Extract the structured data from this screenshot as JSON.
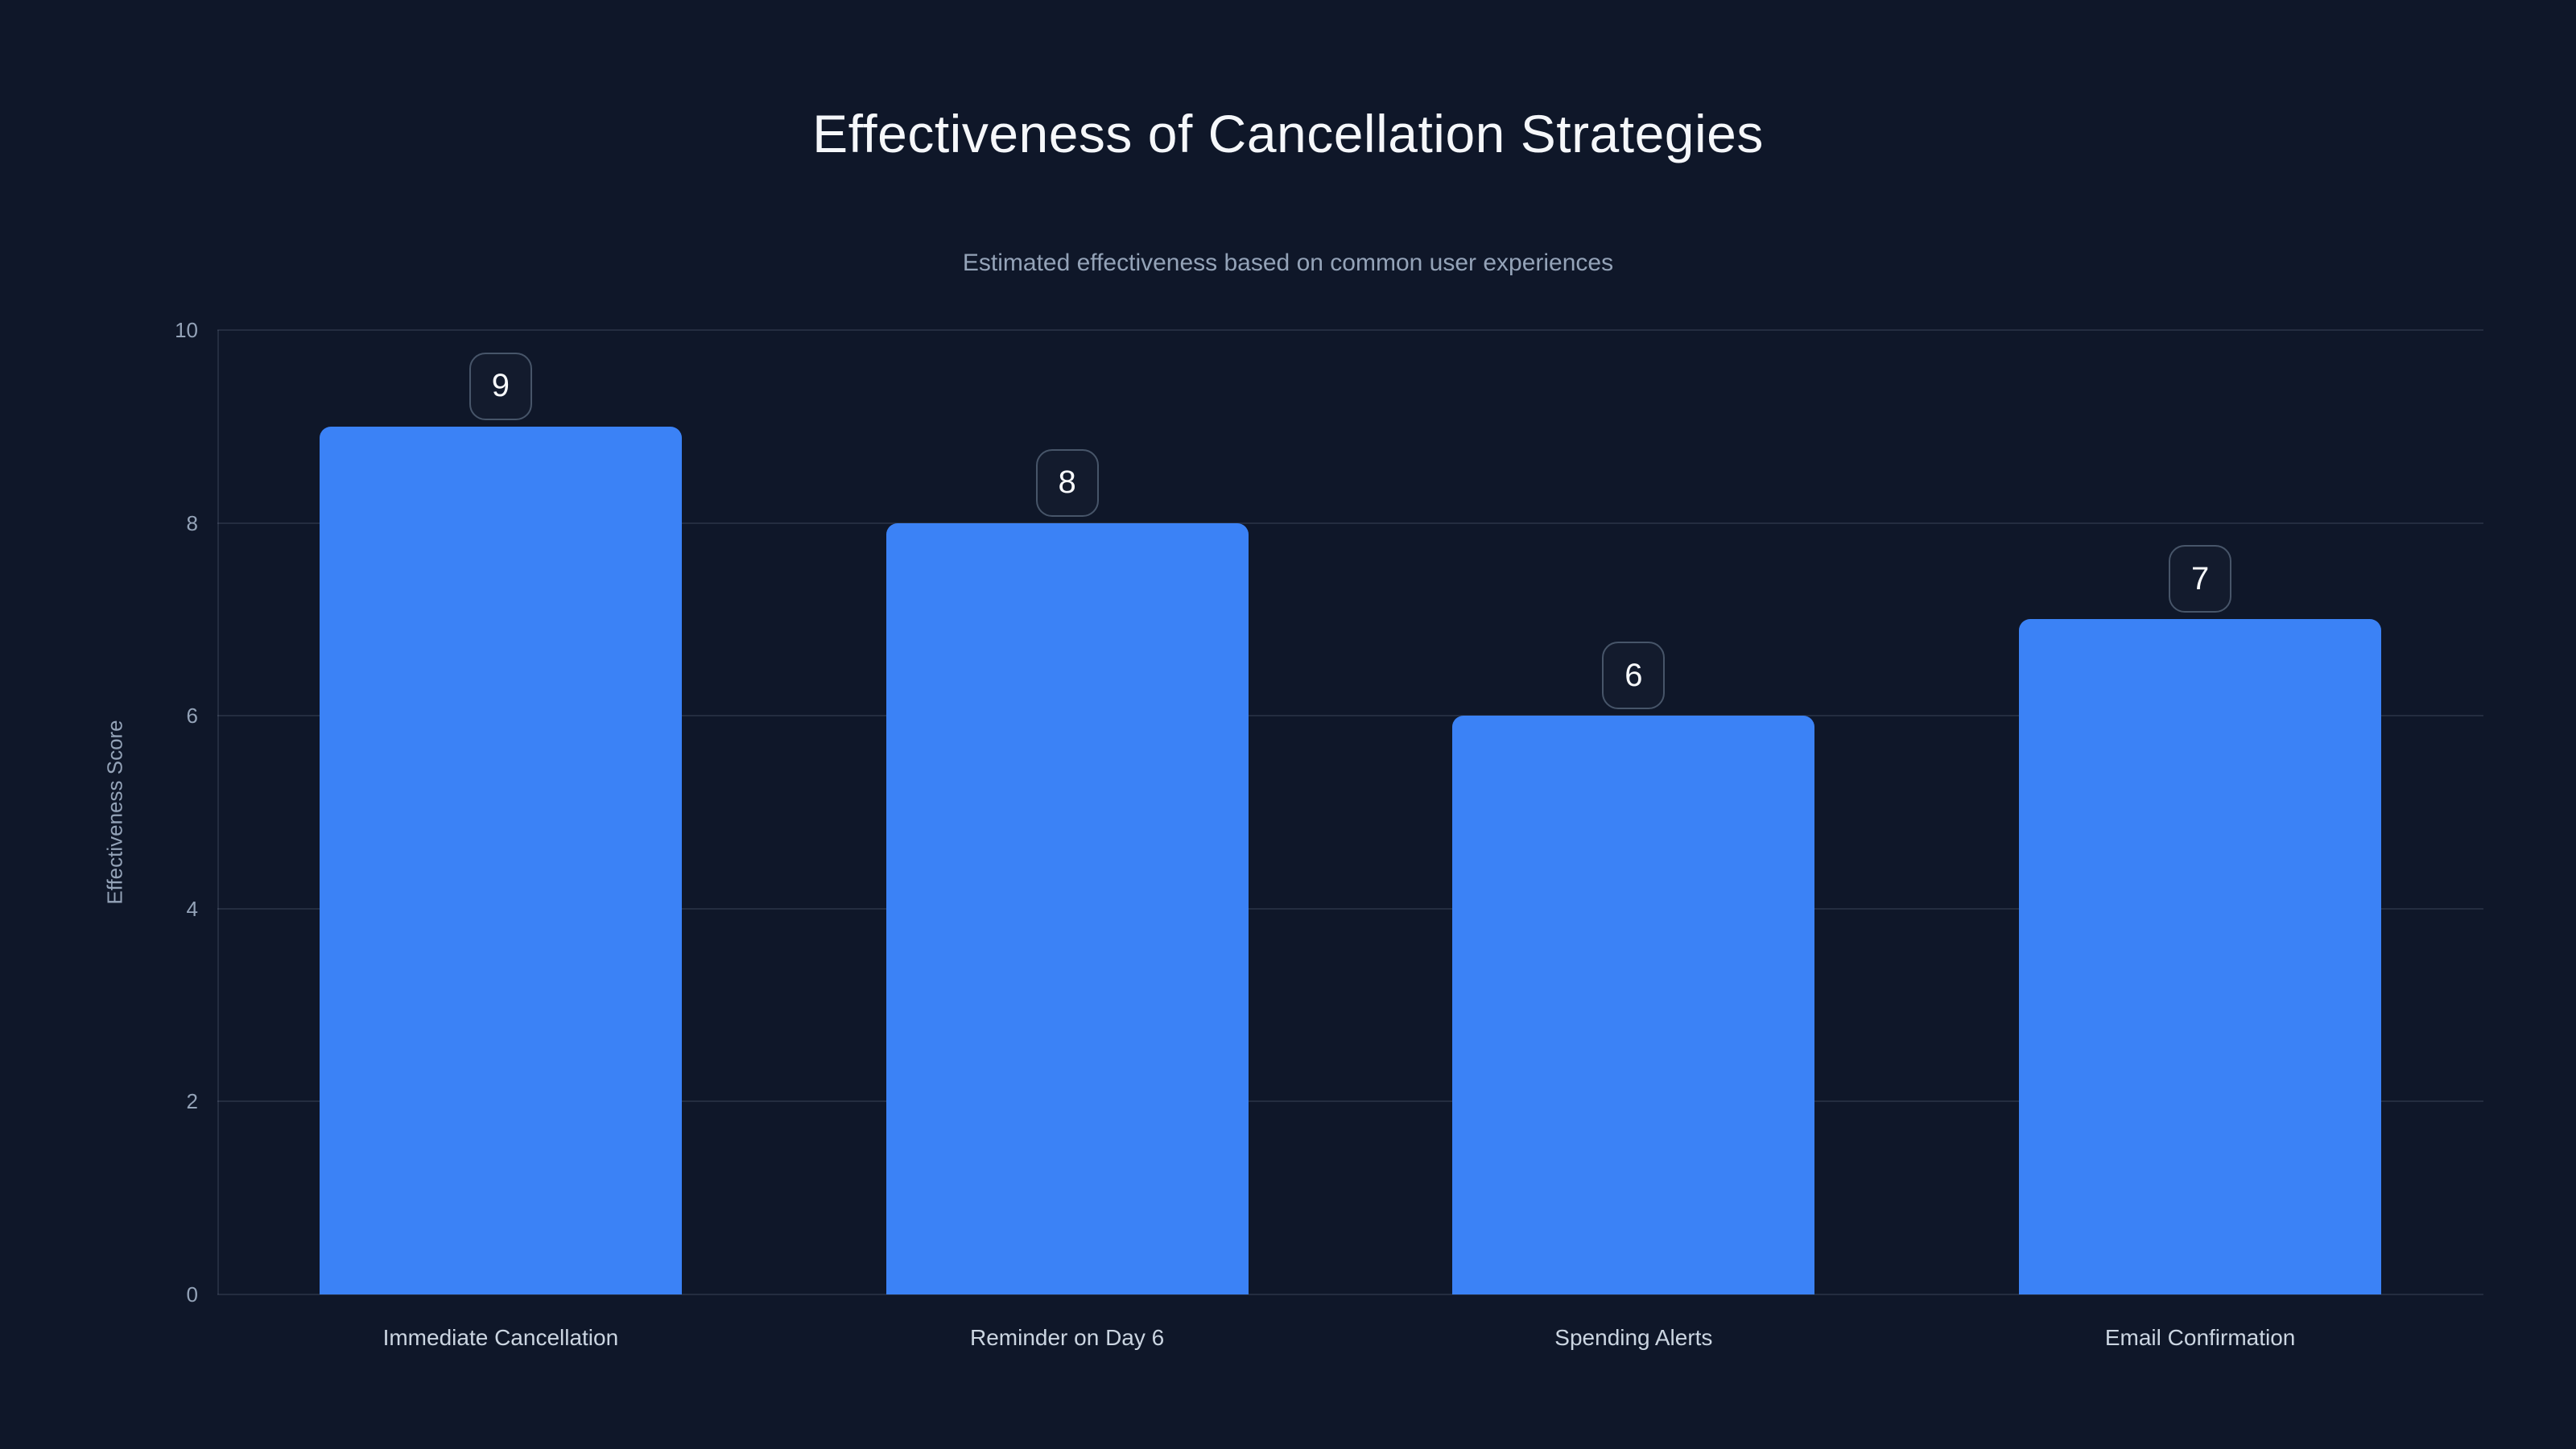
{
  "page": {
    "background_color": "#0f1729"
  },
  "chart_data": {
    "type": "bar",
    "title": "Effectiveness of Cancellation Strategies",
    "subtitle": "Estimated effectiveness based on common user experiences",
    "categories": [
      "Immediate Cancellation",
      "Reminder on Day 6",
      "Spending Alerts",
      "Email Confirmation"
    ],
    "values": [
      9,
      8,
      6,
      7
    ],
    "value_labels": [
      "9",
      "8",
      "6",
      "7"
    ],
    "xlabel": "",
    "ylabel": "Effectiveness Score",
    "ylim": [
      0,
      10
    ],
    "yticks": [
      0,
      2,
      4,
      6,
      8,
      10
    ],
    "grid": true,
    "legend": false,
    "bar_color": "#3b82f6",
    "badge_border_color": "#475569",
    "badge_text_color": "#f8fafc",
    "title_color": "#f5f7fa",
    "subtitle_color": "#94a3b8",
    "tick_label_color": "#94a3b8",
    "category_label_color": "#cbd5e1"
  }
}
